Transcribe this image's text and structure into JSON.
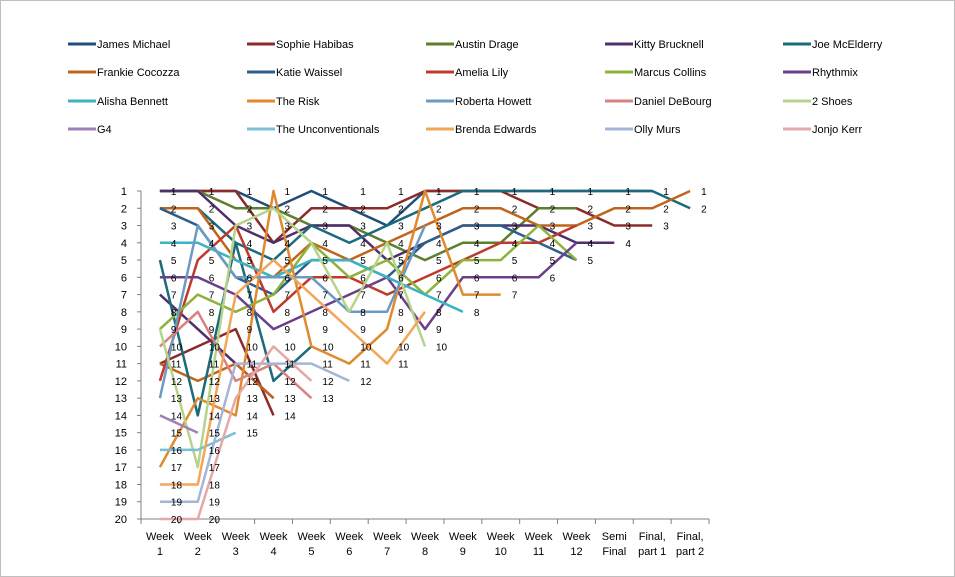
{
  "chart_data": {
    "type": "line",
    "categories": [
      "Week 1",
      "Week 2",
      "Week 3",
      "Week 4",
      "Week 5",
      "Week 6",
      "Week 7",
      "Week 8",
      "Week 9",
      "Week 10",
      "Week 11",
      "Week 12",
      "Semi Final",
      "Final, part 1",
      "Final, part 2"
    ],
    "category_lines": [
      [
        "Week",
        "1"
      ],
      [
        "Week",
        "2"
      ],
      [
        "Week",
        "3"
      ],
      [
        "Week",
        "4"
      ],
      [
        "Week",
        "5"
      ],
      [
        "Week",
        "6"
      ],
      [
        "Week",
        "7"
      ],
      [
        "Week",
        "8"
      ],
      [
        "Week",
        "9"
      ],
      [
        "Week",
        "10"
      ],
      [
        "Week",
        "11"
      ],
      [
        "Week",
        "12"
      ],
      [
        "Semi",
        "Final"
      ],
      [
        "Final,",
        "part 1"
      ],
      [
        "Final,",
        "part 2"
      ]
    ],
    "y_ticks": [
      1,
      2,
      3,
      4,
      5,
      6,
      7,
      8,
      9,
      10,
      11,
      12,
      13,
      14,
      15,
      16,
      17,
      18,
      19,
      20
    ],
    "ylim": [
      1,
      20
    ],
    "y_inverted": true,
    "grid": false,
    "legend_position": "top",
    "series": [
      {
        "name": "James Michael",
        "color": "#1F4E79",
        "values": [
          1,
          1,
          1,
          2,
          1,
          2,
          3,
          1,
          1,
          1,
          1,
          1,
          1,
          1,
          null
        ]
      },
      {
        "name": "Sophie Habibas",
        "color": "#8B2B2B",
        "values": [
          1,
          1,
          1,
          4,
          2,
          2,
          2,
          1,
          1,
          1,
          2,
          2,
          3,
          3,
          null
        ]
      },
      {
        "name": "Austin Drage",
        "color": "#5C7F2E",
        "values": [
          1,
          1,
          2,
          2,
          3,
          3,
          4,
          5,
          4,
          4,
          2,
          2,
          null,
          null,
          null
        ]
      },
      {
        "name": "Kitty Brucknell",
        "color": "#4F2F6B",
        "values": [
          1,
          1,
          3,
          4,
          3,
          3,
          5,
          4,
          3,
          3,
          3,
          4,
          4,
          null,
          null
        ]
      },
      {
        "name": "Joe McElderry",
        "color": "#1B6B7A",
        "values": [
          2,
          2,
          4,
          5,
          3,
          4,
          3,
          2,
          1,
          1,
          1,
          1,
          1,
          1,
          2
        ]
      },
      {
        "name": "Frankie Cocozza",
        "color": "#C0651D",
        "values": [
          2,
          2,
          5,
          6,
          4,
          5,
          4,
          3,
          2,
          2,
          3,
          3,
          2,
          2,
          1
        ]
      },
      {
        "name": "Katie Waissel",
        "color": "#2E5E8A",
        "values": [
          2,
          3,
          6,
          7,
          5,
          5,
          6,
          4,
          3,
          3,
          4,
          5,
          null,
          null,
          null
        ]
      },
      {
        "name": "Amelia Lily",
        "color": "#C0392B",
        "values": [
          12,
          5,
          3,
          8,
          6,
          6,
          7,
          6,
          5,
          4,
          4,
          3,
          null,
          null,
          null
        ]
      },
      {
        "name": "Marcus Collins",
        "color": "#8DB33A",
        "values": [
          9,
          7,
          8,
          7,
          4,
          6,
          5,
          7,
          5,
          5,
          3,
          5,
          null,
          null,
          null
        ]
      },
      {
        "name": "Rhythmix",
        "color": "#6B3F8A",
        "values": [
          6,
          6,
          7,
          9,
          8,
          7,
          6,
          9,
          6,
          6,
          6,
          4,
          null,
          null,
          null
        ]
      },
      {
        "name": "Alisha Bennett",
        "color": "#3BB3C3",
        "values": [
          4,
          4,
          5,
          6,
          5,
          5,
          6,
          7,
          8,
          null,
          null,
          null,
          null,
          null,
          null
        ]
      },
      {
        "name": "The Risk",
        "color": "#E08A2E",
        "values": [
          17,
          13,
          14,
          1,
          10,
          11,
          9,
          1,
          7,
          7,
          null,
          null,
          null,
          null,
          null
        ]
      },
      {
        "name": "Roberta Howett",
        "color": "#6A9BC3",
        "values": [
          13,
          3,
          6,
          6,
          6,
          8,
          8,
          3,
          null,
          null,
          null,
          null,
          null,
          null,
          null
        ]
      },
      {
        "name": "Daniel DeBourg",
        "color": "#D98080",
        "values": [
          10,
          8,
          12,
          11,
          13,
          null,
          null,
          null,
          null,
          null,
          null,
          null,
          null,
          null,
          null
        ]
      },
      {
        "name": "2 Shoes",
        "color": "#B5D48A",
        "values": [
          9,
          17,
          3,
          2,
          4,
          8,
          4,
          10,
          null,
          null,
          null,
          null,
          null,
          null,
          null
        ]
      },
      {
        "name": "G4",
        "color": "#9E7FB8",
        "values": [
          14,
          15,
          null,
          null,
          null,
          null,
          null,
          null,
          null,
          null,
          null,
          null,
          null,
          null,
          null
        ]
      },
      {
        "name": "The Unconventionals",
        "color": "#79BFD8",
        "values": [
          16,
          16,
          15,
          null,
          null,
          null,
          null,
          null,
          null,
          null,
          null,
          null,
          null,
          null,
          null
        ]
      },
      {
        "name": "Brenda Edwards",
        "color": "#F2A65A",
        "values": [
          18,
          18,
          7,
          5,
          7,
          9,
          11,
          8,
          null,
          null,
          null,
          null,
          null,
          null,
          null
        ]
      },
      {
        "name": "Olly Murs",
        "color": "#A5B5D8",
        "values": [
          19,
          19,
          11,
          11,
          11,
          12,
          null,
          null,
          null,
          null,
          null,
          null,
          null,
          null,
          null
        ]
      },
      {
        "name": "Jonjo Kerr",
        "color": "#E5A8A8",
        "values": [
          20,
          20,
          13,
          10,
          12,
          null,
          null,
          null,
          null,
          null,
          null,
          null,
          null,
          null,
          null
        ]
      }
    ],
    "extra_lines": [
      {
        "color": "#4F2F6B",
        "values": [
          7,
          9,
          11,
          13,
          null,
          null,
          null,
          null,
          null,
          null,
          null,
          null,
          null,
          null,
          null
        ]
      },
      {
        "color": "#8B2B2B",
        "values": [
          11,
          10,
          9,
          14,
          null,
          null,
          null,
          null,
          null,
          null,
          null,
          null,
          null,
          null,
          null
        ]
      },
      {
        "color": "#C0651D",
        "values": [
          11,
          12,
          11,
          13,
          null,
          null,
          null,
          null,
          null,
          null,
          null,
          null,
          null,
          null,
          null
        ]
      },
      {
        "color": "#1B6B7A",
        "values": [
          5,
          14,
          4,
          12,
          10,
          null,
          null,
          null,
          null,
          null,
          null,
          null,
          null,
          null,
          null
        ]
      }
    ],
    "point_labels": [
      {
        "x": 0,
        "ranks": [
          1,
          2,
          3,
          4,
          5,
          6,
          7,
          8,
          9,
          10,
          11,
          12,
          13,
          14,
          15,
          16,
          17,
          18,
          19,
          20
        ]
      },
      {
        "x": 1,
        "ranks": [
          1,
          2,
          3,
          4,
          5,
          6,
          7,
          8,
          9,
          10,
          11,
          12,
          13,
          14,
          15,
          16,
          17,
          18,
          19,
          20
        ]
      },
      {
        "x": 2,
        "ranks": [
          1,
          2,
          3,
          4,
          5,
          6,
          7,
          8,
          9,
          10,
          11,
          12,
          13,
          14,
          15
        ]
      },
      {
        "x": 3,
        "ranks": [
          1,
          2,
          3,
          4,
          5,
          6,
          7,
          8,
          9,
          10,
          11,
          12,
          13,
          14
        ]
      },
      {
        "x": 4,
        "ranks": [
          1,
          2,
          3,
          4,
          5,
          6,
          7,
          8,
          9,
          10,
          11,
          12,
          13
        ]
      },
      {
        "x": 5,
        "ranks": [
          1,
          2,
          3,
          4,
          5,
          6,
          7,
          8,
          9,
          10,
          11,
          12
        ]
      },
      {
        "x": 6,
        "ranks": [
          1,
          2,
          3,
          4,
          5,
          6,
          7,
          8,
          9,
          10,
          11
        ]
      },
      {
        "x": 7,
        "ranks": [
          1,
          2,
          3,
          4,
          5,
          6,
          7,
          8,
          9,
          10
        ]
      },
      {
        "x": 8,
        "ranks": [
          1,
          2,
          3,
          4,
          5,
          6,
          7,
          8
        ]
      },
      {
        "x": 9,
        "ranks": [
          1,
          2,
          3,
          4,
          5,
          6,
          7
        ]
      },
      {
        "x": 10,
        "ranks": [
          1,
          2,
          3,
          4,
          5,
          6
        ]
      },
      {
        "x": 11,
        "ranks": [
          1,
          2,
          3,
          4,
          5
        ]
      },
      {
        "x": 12,
        "ranks": [
          1,
          2,
          3,
          4
        ]
      },
      {
        "x": 13,
        "ranks": [
          1,
          2,
          3
        ]
      },
      {
        "x": 14,
        "ranks": [
          1,
          2
        ]
      }
    ]
  }
}
